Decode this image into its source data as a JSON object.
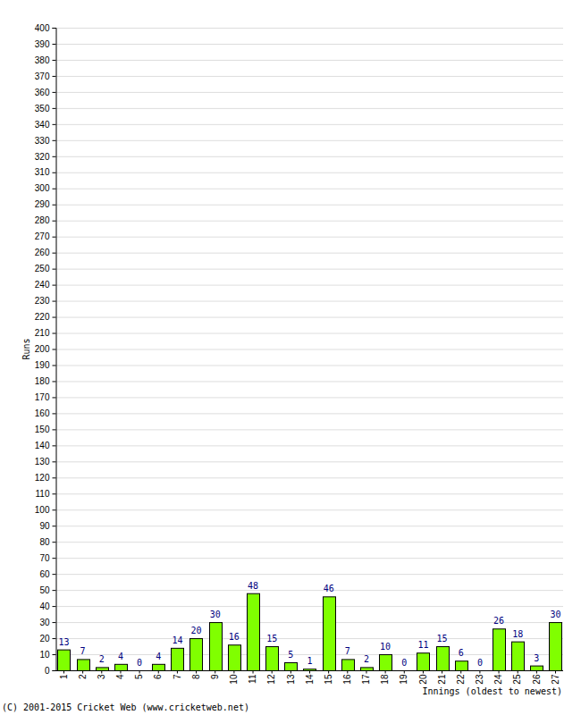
{
  "chart_data": {
    "type": "bar",
    "x_label": "Innings (oldest to newest)",
    "y_label": "Runs",
    "annotations": [
      "(C) 2001-2015 Cricket Web (www.cricketweb.net)"
    ],
    "categories": [
      "1",
      "2",
      "3",
      "4",
      "5",
      "6",
      "7",
      "8",
      "9",
      "10",
      "11",
      "12",
      "13",
      "14",
      "15",
      "16",
      "17",
      "18",
      "19",
      "20",
      "21",
      "22",
      "23",
      "24",
      "25",
      "26",
      "27"
    ],
    "values": [
      13,
      7,
      2,
      4,
      0,
      4,
      14,
      20,
      30,
      16,
      48,
      15,
      5,
      1,
      46,
      7,
      2,
      10,
      0,
      11,
      15,
      6,
      0,
      26,
      18,
      3,
      30
    ],
    "color": "#80ff00",
    "ylim": [
      0,
      400
    ],
    "yticks": [
      0,
      10,
      20,
      30,
      40,
      50,
      60,
      70,
      80,
      90,
      100,
      110,
      120,
      130,
      140,
      150,
      160,
      170,
      180,
      190,
      200,
      210,
      220,
      230,
      240,
      250,
      260,
      270,
      280,
      290,
      300,
      310,
      320,
      330,
      340,
      350,
      360,
      370,
      380,
      390,
      400
    ],
    "grid": true,
    "data_labels": true
  }
}
